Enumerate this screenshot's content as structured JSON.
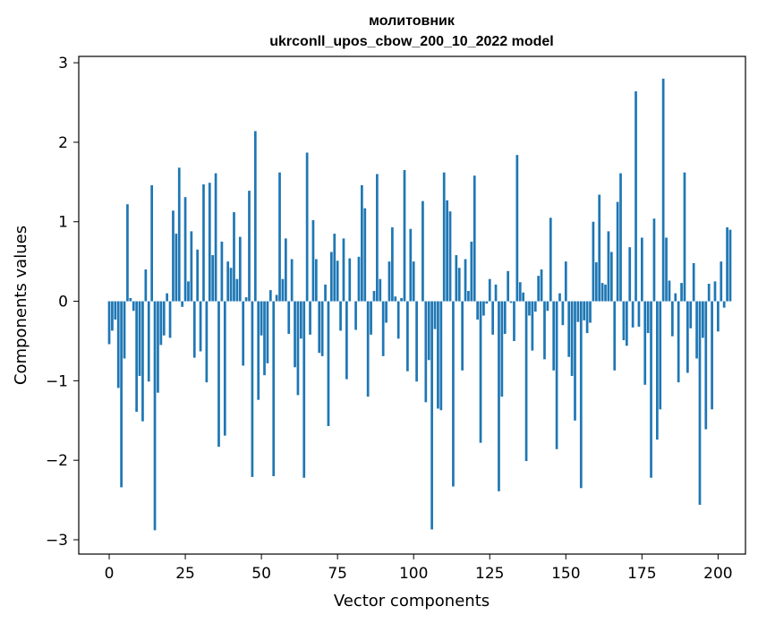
{
  "chart_data": {
    "type": "bar",
    "title_lines": [
      "молитовник",
      "ukrconll_upos_cbow_200_10_2022 model"
    ],
    "xlabel": "Vector components",
    "ylabel": "Components values",
    "xlim": [
      -10,
      209
    ],
    "ylim": [
      -3.18,
      3.08
    ],
    "xticks": [
      0,
      25,
      50,
      75,
      100,
      125,
      150,
      175,
      200
    ],
    "xtick_labels": [
      "0",
      "25",
      "50",
      "75",
      "100",
      "125",
      "150",
      "175",
      "200"
    ],
    "yticks": [
      -3,
      -2,
      -1,
      0,
      1,
      2,
      3
    ],
    "ytick_labels": [
      "−3",
      "−2",
      "−1",
      "0",
      "1",
      "2",
      "3"
    ],
    "bar_color": "#1f77b4",
    "grid": false,
    "values": [
      -0.54,
      -0.37,
      -0.23,
      -1.09,
      -2.34,
      -0.72,
      1.22,
      0.04,
      -0.12,
      -1.39,
      -0.94,
      -1.51,
      0.4,
      -1.01,
      1.46,
      -2.88,
      -1.15,
      -0.55,
      -0.43,
      0.1,
      -0.46,
      1.14,
      0.85,
      1.68,
      -0.07,
      1.31,
      0.25,
      0.88,
      -0.71,
      0.65,
      -0.63,
      1.47,
      -1.02,
      1.49,
      0.58,
      1.61,
      -1.83,
      0.75,
      -1.69,
      0.5,
      0.42,
      1.12,
      0.28,
      0.81,
      -0.81,
      0.05,
      1.39,
      -2.21,
      2.14,
      -1.24,
      -0.43,
      -0.93,
      -0.78,
      0.14,
      -2.2,
      0.08,
      1.62,
      0.28,
      0.79,
      -0.41,
      0.53,
      -0.83,
      -1.18,
      -0.47,
      -2.22,
      1.87,
      -0.42,
      1.02,
      0.53,
      -0.65,
      -0.69,
      0.21,
      -1.57,
      0.62,
      0.85,
      0.51,
      -0.37,
      0.79,
      -0.98,
      0.54,
      0.0,
      -0.36,
      0.56,
      1.46,
      1.17,
      -1.2,
      -0.42,
      0.13,
      1.6,
      0.28,
      -0.69,
      -0.27,
      0.5,
      0.93,
      0.06,
      -0.47,
      0.04,
      1.65,
      -0.88,
      0.91,
      0.5,
      -1.01,
      0.0,
      1.26,
      -1.27,
      -0.74,
      -2.87,
      -0.35,
      -1.35,
      -1.37,
      1.62,
      1.27,
      1.13,
      -2.33,
      0.58,
      0.42,
      -0.87,
      0.53,
      0.13,
      0.75,
      1.58,
      -0.23,
      -1.78,
      -0.18,
      -0.03,
      0.28,
      -0.42,
      0.21,
      -2.39,
      -1.2,
      -0.41,
      0.38,
      -0.02,
      -0.5,
      1.84,
      0.24,
      0.11,
      -2.01,
      -0.18,
      -0.62,
      -0.13,
      0.32,
      0.4,
      -0.73,
      -0.12,
      1.05,
      -0.87,
      -1.86,
      0.1,
      -0.3,
      0.5,
      -0.7,
      -0.94,
      -1.5,
      -0.26,
      -2.35,
      -0.24,
      -0.4,
      -0.27,
      1.0,
      0.49,
      1.34,
      0.23,
      0.21,
      0.88,
      0.62,
      -0.87,
      1.25,
      1.61,
      -0.49,
      -0.56,
      0.68,
      -0.33,
      2.64,
      -0.32,
      0.8,
      -1.05,
      -0.4,
      -2.22,
      1.04,
      -1.74,
      -1.36,
      2.8,
      0.8,
      0.26,
      -0.44,
      0.1,
      -1.02,
      0.23,
      1.62,
      -0.9,
      -0.34,
      0.48,
      -0.72,
      -2.56,
      -0.46,
      -1.61,
      0.22,
      -1.36,
      0.25,
      -0.38,
      0.5,
      -0.08,
      0.93,
      0.9
    ]
  }
}
